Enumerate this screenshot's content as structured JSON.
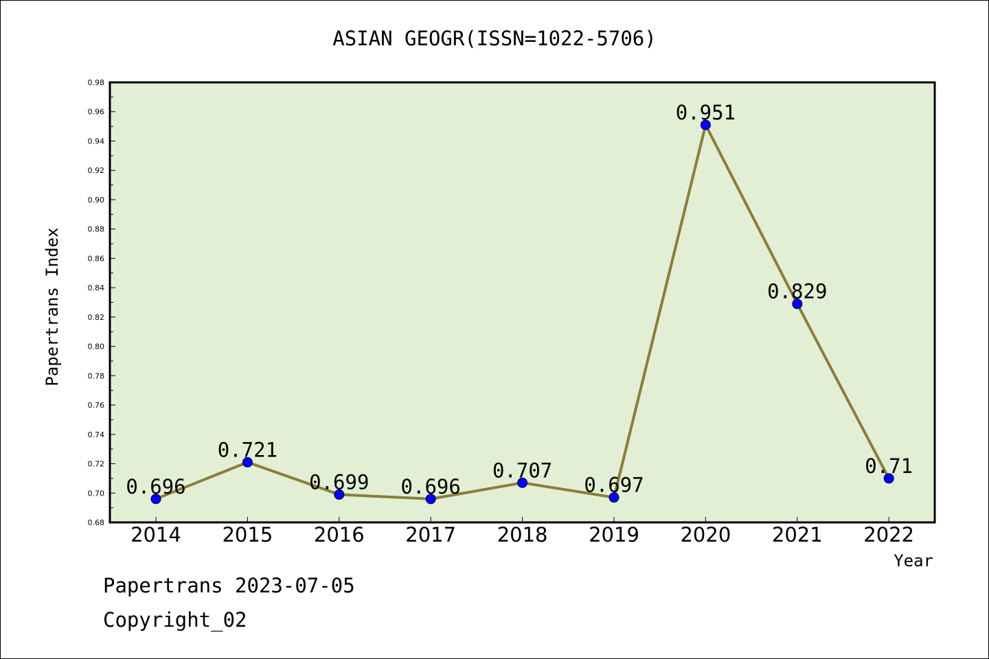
{
  "chart_data": {
    "type": "line",
    "title": "ASIAN GEOGR(ISSN=1022-5706)",
    "xlabel": "Year",
    "ylabel": "Papertrans Index",
    "categories": [
      "2014",
      "2015",
      "2016",
      "2017",
      "2018",
      "2019",
      "2020",
      "2021",
      "2022"
    ],
    "values": [
      0.696,
      0.721,
      0.699,
      0.696,
      0.707,
      0.697,
      0.951,
      0.829,
      0.71
    ],
    "data_labels": [
      "0.696",
      "0.721",
      "0.699",
      "0.696",
      "0.707",
      "0.697",
      "0.951",
      "0.829",
      "0.71"
    ],
    "ylim": [
      0.68,
      0.98
    ],
    "y_ticks": [
      "0.68",
      "0.70",
      "0.72",
      "0.74",
      "0.76",
      "0.78",
      "0.80",
      "0.82",
      "0.84",
      "0.86",
      "0.88",
      "0.90",
      "0.92",
      "0.94",
      "0.96",
      "0.98"
    ],
    "grid": false,
    "legend": "none",
    "colors": {
      "plot_background": "#e2efd5",
      "line": "#8b7d3a",
      "marker": "#0000ff"
    }
  },
  "footer": {
    "line1": "Papertrans 2023-07-05",
    "line2": "Copyright_02"
  }
}
